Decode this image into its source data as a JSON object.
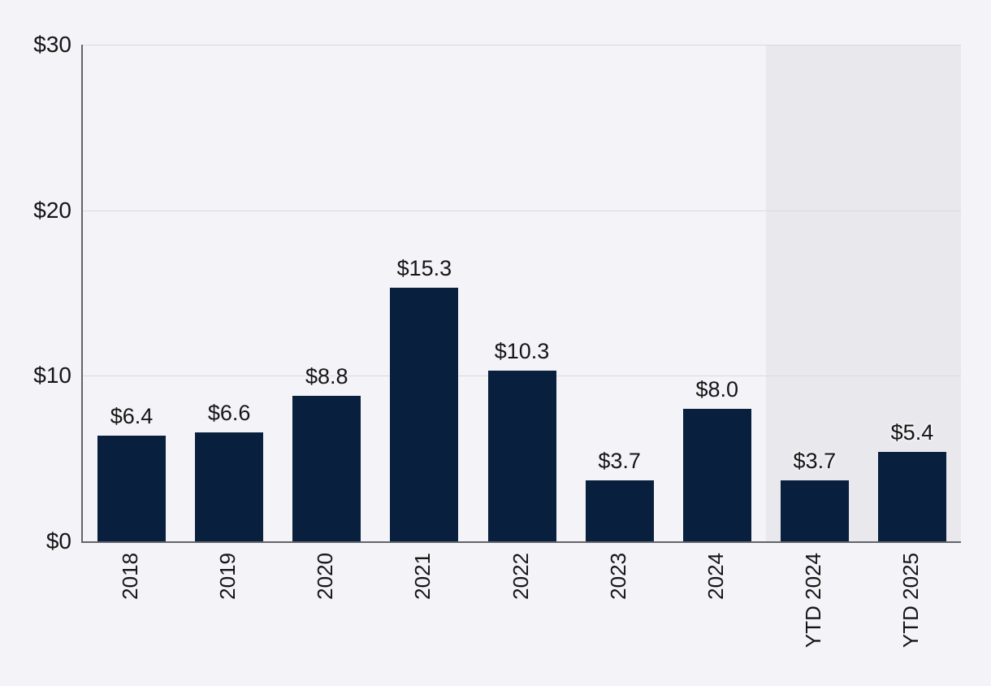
{
  "chart_data": {
    "type": "bar",
    "categories": [
      "2018",
      "2019",
      "2020",
      "2021",
      "2022",
      "2023",
      "2024",
      "YTD 2024",
      "YTD 2025"
    ],
    "values": [
      6.4,
      6.6,
      8.8,
      15.3,
      10.3,
      3.7,
      8.0,
      3.7,
      5.4
    ],
    "bar_labels": [
      "$6.4",
      "$6.6",
      "$8.8",
      "$15.3",
      "$10.3",
      "$3.7",
      "$8.0",
      "$3.7",
      "$5.4"
    ],
    "title": "",
    "xlabel": "",
    "ylabel": "",
    "ylim": [
      0,
      30
    ],
    "ytick_values": [
      0,
      10,
      20,
      30
    ],
    "ytick_labels": [
      "$0",
      "$10",
      "$20",
      "$30"
    ],
    "grid": true,
    "legend": null,
    "highlight_region": {
      "categories": [
        "YTD 2024",
        "YTD 2025"
      ],
      "color": "#e9e9ed"
    },
    "colors": {
      "bar": "#081f3e",
      "background": "#f4f4f8",
      "gridline": "#d9d9de",
      "axis_spine": "#63646a",
      "text": "#151515"
    }
  }
}
